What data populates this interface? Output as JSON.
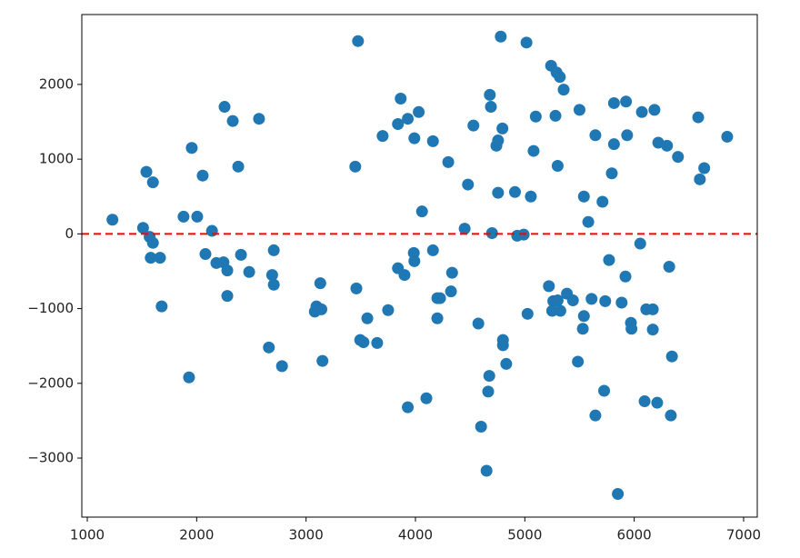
{
  "chart_data": {
    "type": "scatter",
    "color": "#1f77b4",
    "marker_radius": 6.5,
    "x": [
      1230,
      1540,
      1600,
      1510,
      1570,
      1600,
      1580,
      1665,
      1680,
      1955,
      2055,
      1880,
      2005,
      2140,
      2080,
      2180,
      2245,
      2280,
      2280,
      1930,
      2255,
      2330,
      2380,
      2570,
      2405,
      2480,
      2705,
      2690,
      2705,
      2660,
      2780,
      3130,
      3095,
      3080,
      3140,
      3150,
      3475,
      3450,
      3460,
      3495,
      3525,
      3560,
      3650,
      3750,
      3700,
      3865,
      3840,
      3930,
      4030,
      3990,
      3840,
      3900,
      3985,
      3990,
      4060,
      3930,
      4100,
      4160,
      4160,
      4200,
      4225,
      4200,
      4300,
      4325,
      4335,
      4480,
      4450,
      4530,
      4575,
      4600,
      4650,
      4665,
      4675,
      4680,
      4690,
      4700,
      4740,
      4755,
      4795,
      4755,
      4780,
      4800,
      4800,
      4830,
      4910,
      4930,
      4990,
      5015,
      5025,
      5055,
      5080,
      5100,
      5240,
      5290,
      5320,
      5355,
      5280,
      5300,
      5220,
      5260,
      5250,
      5300,
      5325,
      5385,
      5440,
      5500,
      5540,
      5580,
      5540,
      5530,
      5485,
      5610,
      5645,
      5645,
      5710,
      5735,
      5725,
      5770,
      5795,
      5815,
      5815,
      5850,
      5885,
      5920,
      5925,
      5935,
      5970,
      5975,
      6055,
      6070,
      6095,
      6110,
      6170,
      6170,
      6185,
      6210,
      6220,
      6300,
      6320,
      6335,
      6345,
      6400,
      6585,
      6600,
      6640,
      6850
    ],
    "values": [
      190,
      830,
      690,
      80,
      -40,
      -120,
      -320,
      -320,
      -970,
      1150,
      780,
      230,
      230,
      40,
      -270,
      -390,
      -380,
      -490,
      -830,
      -1920,
      1700,
      1510,
      900,
      1540,
      -280,
      -510,
      -220,
      -550,
      -680,
      -1520,
      -1770,
      -660,
      -970,
      -1040,
      -1010,
      -1700,
      2580,
      900,
      -730,
      -1420,
      -1450,
      -1130,
      -1460,
      -1020,
      1310,
      1810,
      1470,
      1540,
      1630,
      1280,
      -460,
      -550,
      -255,
      -365,
      300,
      -2320,
      -2200,
      1240,
      -220,
      -860,
      -860,
      -1130,
      960,
      -770,
      -520,
      660,
      70,
      1450,
      -1200,
      -2580,
      -3170,
      -2110,
      -1900,
      1860,
      1700,
      10,
      1180,
      1250,
      1410,
      550,
      2640,
      -1420,
      -1490,
      -1740,
      560,
      -25,
      -10,
      2560,
      -1070,
      500,
      1110,
      1570,
      2250,
      2160,
      2100,
      1930,
      1580,
      910,
      -700,
      -900,
      -1030,
      -890,
      -1030,
      -800,
      -890,
      1660,
      500,
      160,
      -1100,
      -1270,
      -1710,
      -870,
      1320,
      -2430,
      430,
      -900,
      -2100,
      -350,
      810,
      1750,
      1200,
      -3480,
      -920,
      -570,
      1770,
      1320,
      -1190,
      -1270,
      -130,
      1630,
      -2240,
      -1010,
      -1010,
      -1280,
      1660,
      -2260,
      1220,
      1180,
      -440,
      -2430,
      -1640,
      1030,
      1560,
      730,
      880,
      1300
    ],
    "hline": {
      "value": 0,
      "color": "red",
      "style": "dashed"
    },
    "xlim": [
      950,
      7125
    ],
    "ylim": [
      -3790,
      2935
    ],
    "xticks": [
      1000,
      2000,
      3000,
      4000,
      5000,
      6000,
      7000
    ],
    "yticks": [
      {
        "value": -3000,
        "label": "−3000"
      },
      {
        "value": -2000,
        "label": "−2000"
      },
      {
        "value": -1000,
        "label": "−1000"
      },
      0,
      1000,
      2000
    ]
  }
}
